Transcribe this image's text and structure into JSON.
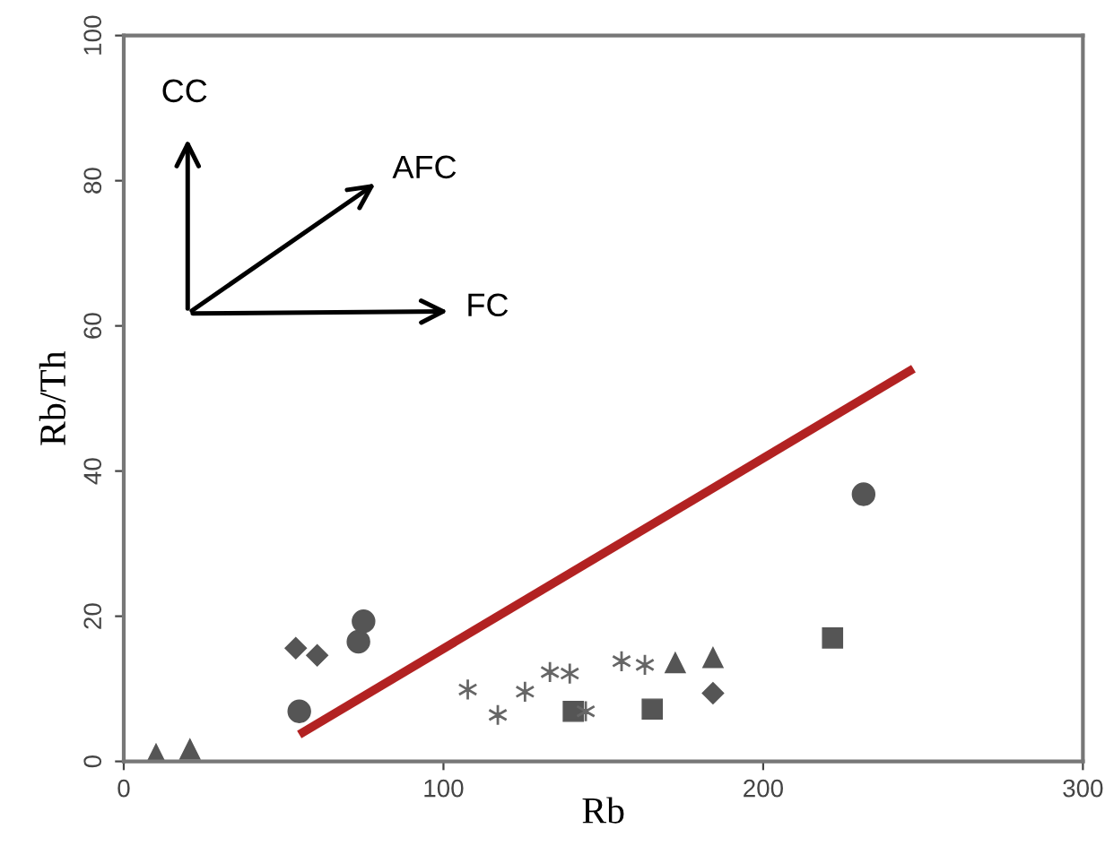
{
  "chart_data": {
    "type": "scatter",
    "xlabel": "Rb",
    "ylabel": "Rb/Th",
    "xlim": [
      0,
      300
    ],
    "ylim": [
      0,
      100
    ],
    "xticks": [
      0,
      100,
      200,
      300
    ],
    "yticks": [
      0,
      20,
      40,
      60,
      80,
      100
    ],
    "grid": false,
    "legend": false,
    "annotations": [
      "CC",
      "AFC",
      "FC"
    ],
    "series": [
      {
        "marker": "circle",
        "color": "#555555",
        "x": [
          54.9,
          73.4,
          75,
          231.4
        ],
        "values": [
          6.9,
          16.5,
          19.3,
          36.8
        ]
      },
      {
        "marker": "diamond",
        "color": "#555555",
        "x": [
          53.8,
          60.5,
          184.3
        ],
        "values": [
          15.6,
          14.6,
          9.4
        ]
      },
      {
        "marker": "triangle",
        "color": "#555555",
        "x": [
          10.1,
          20.7,
          172.5,
          184.3
        ],
        "values": [
          1.0,
          1.7,
          13.6,
          14.3
        ]
      },
      {
        "marker": "square",
        "color": "#555555",
        "x": [
          140.6,
          165.3,
          221.7
        ],
        "values": [
          6.9,
          7.2,
          17.0
        ]
      },
      {
        "marker": "cross",
        "color": "#666666",
        "x": [
          107.6,
          117,
          125.5,
          133.3,
          139.5,
          144.5,
          155.7,
          163
        ],
        "values": [
          9.9,
          6.4,
          9.6,
          12.3,
          12.1,
          6.9,
          13.8,
          13.3
        ]
      },
      {
        "type": "line",
        "color": "#b22222",
        "x": [
          54.9,
          247
        ],
        "values": [
          3.7,
          54.1
        ]
      }
    ]
  }
}
